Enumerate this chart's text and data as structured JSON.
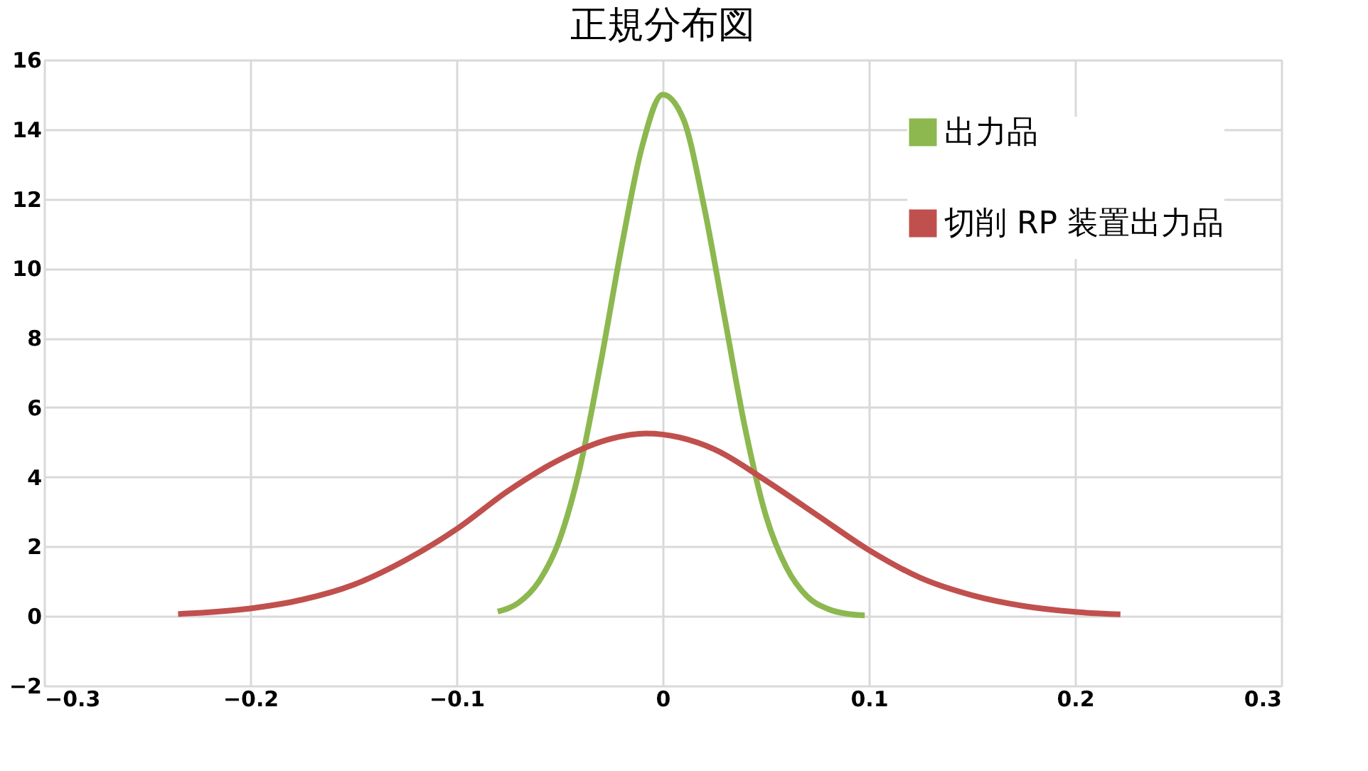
{
  "chart_data": {
    "type": "line",
    "title": "正規分布図",
    "series": [
      {
        "name": "出力品",
        "color": "#8cb84f",
        "x": [
          -0.08,
          -0.07,
          -0.06,
          -0.05,
          -0.04,
          -0.03,
          -0.02,
          -0.01,
          0,
          0.01,
          0.02,
          0.03,
          0.04,
          0.05,
          0.06,
          0.07,
          0.08,
          0.09,
          0.098
        ],
        "values": [
          0.13,
          0.38,
          1.0,
          2.2,
          4.3,
          7.3,
          10.6,
          13.5,
          15.0,
          14.3,
          11.8,
          8.6,
          5.4,
          2.9,
          1.4,
          0.57,
          0.21,
          0.06,
          0.02
        ]
      },
      {
        "name": "切削 RP 装置出力品",
        "color": "#c0504d",
        "x": [
          -0.235,
          -0.2,
          -0.175,
          -0.15,
          -0.125,
          -0.1,
          -0.075,
          -0.05,
          -0.025,
          -0.008,
          0.025,
          0.05,
          0.075,
          0.1,
          0.125,
          0.15,
          0.175,
          0.2,
          0.222
        ],
        "values": [
          0.06,
          0.22,
          0.47,
          0.9,
          1.6,
          2.5,
          3.6,
          4.5,
          5.1,
          5.25,
          4.8,
          3.9,
          2.9,
          1.9,
          1.1,
          0.6,
          0.29,
          0.12,
          0.05
        ]
      }
    ],
    "xlim": [
      -0.3,
      0.3
    ],
    "xticks": [
      -0.3,
      -0.2,
      -0.1,
      0,
      0.1,
      0.2,
      0.3
    ],
    "ylim": [
      -2,
      16
    ],
    "yticks": [
      -2,
      0,
      2,
      4,
      6,
      8,
      10,
      12,
      14,
      16
    ],
    "grid": true,
    "legend": "top right",
    "marker": "none",
    "line_style": "solid"
  }
}
